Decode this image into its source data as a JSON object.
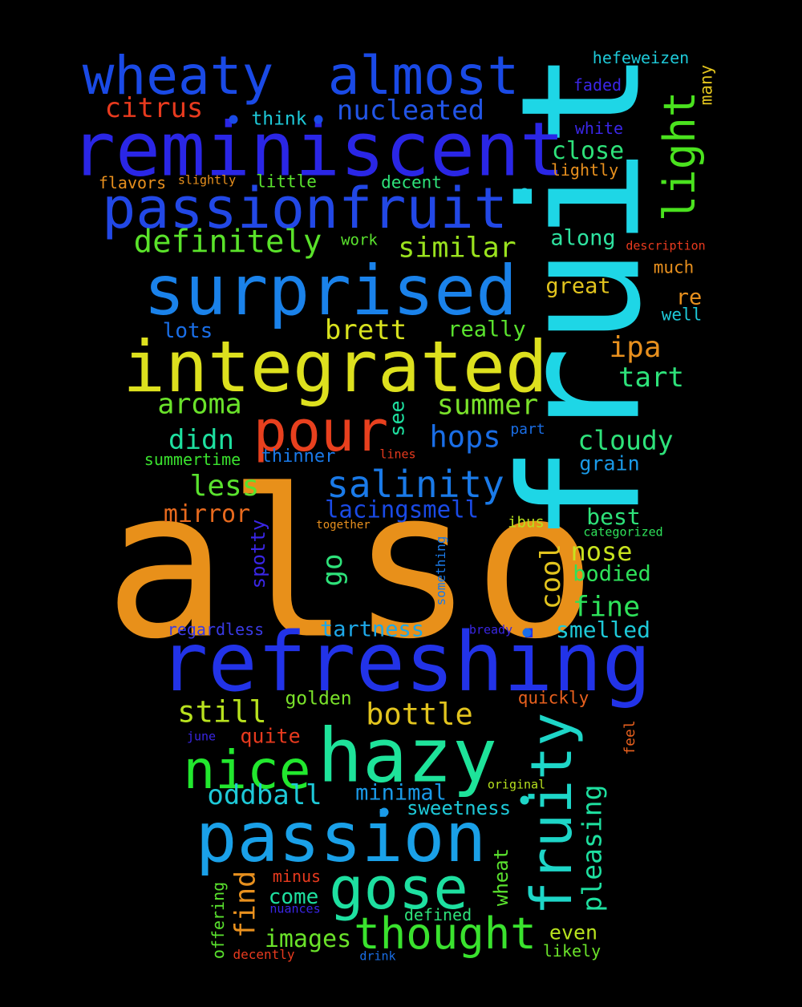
{
  "words": [
    {
      "text": "also",
      "color": "#e8901a"
    },
    {
      "text": "fruit",
      "color": "#1ed6e6"
    },
    {
      "text": "refreshing",
      "color": "#2233e8"
    },
    {
      "text": "reminiscent",
      "color": "#2a26e6"
    },
    {
      "text": "passion",
      "color": "#1aa0e8"
    },
    {
      "text": "integrated",
      "color": "#dde01e"
    },
    {
      "text": "surprised",
      "color": "#1a82ea"
    },
    {
      "text": "passionfruit",
      "color": "#2248e6"
    },
    {
      "text": "hazy",
      "color": "#1ee39a"
    },
    {
      "text": "wheaty",
      "color": "#1a4ae6"
    },
    {
      "text": "almost",
      "color": "#1a4ae6"
    },
    {
      "text": "fruity",
      "color": "#1ed6c8"
    },
    {
      "text": "pour",
      "color": "#e8401e"
    },
    {
      "text": "gose",
      "color": "#1ee0a0"
    },
    {
      "text": "nice",
      "color": "#22e82e"
    },
    {
      "text": "thought",
      "color": "#3ae22e"
    },
    {
      "text": "light",
      "color": "#4ae21e"
    },
    {
      "text": "salinity",
      "color": "#1a7ae8"
    },
    {
      "text": "definitely",
      "color": "#5ae22a"
    },
    {
      "text": "nucleated",
      "color": "#2255e6"
    },
    {
      "text": "oddball",
      "color": "#1ec9d8"
    },
    {
      "text": "citrus",
      "color": "#e83a1e"
    },
    {
      "text": "similar",
      "color": "#9ae21e"
    },
    {
      "text": "aroma",
      "color": "#6ae22a"
    },
    {
      "text": "summer",
      "color": "#7ae22a"
    },
    {
      "text": "bottle",
      "color": "#e2c41e"
    },
    {
      "text": "still",
      "color": "#b8e21e"
    },
    {
      "text": "hops",
      "color": "#1a6ee6"
    },
    {
      "text": "cloudy",
      "color": "#2ee27a"
    },
    {
      "text": "pleasing",
      "color": "#1ee0a0"
    },
    {
      "text": "brett",
      "color": "#d8e21e"
    },
    {
      "text": "less",
      "color": "#5ae22e"
    },
    {
      "text": "didn",
      "color": "#1ee0a0"
    },
    {
      "text": "ipa",
      "color": "#e8901e"
    },
    {
      "text": "tart",
      "color": "#2ee27a"
    },
    {
      "text": "fine",
      "color": "#2ee25a"
    },
    {
      "text": "go",
      "color": "#2ee27a"
    },
    {
      "text": "find",
      "color": "#e8901e"
    },
    {
      "text": "cool",
      "color": "#e2c41e"
    },
    {
      "text": "mirror",
      "color": "#e86a1e"
    },
    {
      "text": "nose",
      "color": "#c8e21e"
    },
    {
      "text": "images",
      "color": "#6ae22a"
    },
    {
      "text": "close",
      "color": "#2ee27a"
    },
    {
      "text": "lacingsmell",
      "color": "#1a4ae6"
    },
    {
      "text": "tartness",
      "color": "#1ea8e8"
    },
    {
      "text": "minimal",
      "color": "#1a9ae8"
    },
    {
      "text": "great",
      "color": "#e2c41e"
    },
    {
      "text": "best",
      "color": "#2ee27a"
    },
    {
      "text": "smelled",
      "color": "#1ec9d8"
    },
    {
      "text": "bodied",
      "color": "#2ee25a"
    },
    {
      "text": "grain",
      "color": "#1a9ae8"
    },
    {
      "text": "along",
      "color": "#2ee2a0"
    },
    {
      "text": "really",
      "color": "#5ae22e"
    },
    {
      "text": "lots",
      "color": "#1a6ee6"
    },
    {
      "text": "see",
      "color": "#1ee0a0"
    },
    {
      "text": "sweetness",
      "color": "#1ec9d8"
    },
    {
      "text": "come",
      "color": "#1ee0a0"
    },
    {
      "text": "even",
      "color": "#b8e21e"
    },
    {
      "text": "quite",
      "color": "#e83a1e"
    },
    {
      "text": "golden",
      "color": "#7ae22a"
    },
    {
      "text": "wheat",
      "color": "#5ae22e"
    },
    {
      "text": "spotty",
      "color": "#3a26e6"
    },
    {
      "text": "re",
      "color": "#e8901e"
    },
    {
      "text": "think",
      "color": "#1ec9d8"
    },
    {
      "text": "hefeweizen",
      "color": "#1ec9d8"
    },
    {
      "text": "faded",
      "color": "#3a26e6"
    },
    {
      "text": "white",
      "color": "#3a26e6"
    },
    {
      "text": "many",
      "color": "#e2c41e"
    },
    {
      "text": "little",
      "color": "#5ae22e"
    },
    {
      "text": "decent",
      "color": "#2ee27a"
    },
    {
      "text": "flavors",
      "color": "#e8901e"
    },
    {
      "text": "lightly",
      "color": "#e8901e"
    },
    {
      "text": "work",
      "color": "#5ae22e"
    },
    {
      "text": "much",
      "color": "#e8901e"
    },
    {
      "text": "defined",
      "color": "#2ee27a"
    },
    {
      "text": "thinner",
      "color": "#1a7ae8"
    },
    {
      "text": "summertime",
      "color": "#3ae22e"
    },
    {
      "text": "ibus",
      "color": "#b8e21e"
    },
    {
      "text": "regardless",
      "color": "#3a3ae6"
    },
    {
      "text": "quickly",
      "color": "#e8601e"
    },
    {
      "text": "minus",
      "color": "#e83a1e"
    },
    {
      "text": "offering",
      "color": "#5ae22e"
    },
    {
      "text": "likely",
      "color": "#6ae22a"
    },
    {
      "text": "well",
      "color": "#1ec9d8"
    },
    {
      "text": "something",
      "color": "#1a7ae8"
    },
    {
      "text": "part",
      "color": "#1a6ee6"
    },
    {
      "text": "feel",
      "color": "#e8601e"
    },
    {
      "text": "slightly",
      "color": "#e8901e"
    },
    {
      "text": "description",
      "color": "#e83a1e"
    },
    {
      "text": "lines",
      "color": "#e83a1e"
    },
    {
      "text": "together",
      "color": "#e8901e"
    },
    {
      "text": "categorized",
      "color": "#2ee25a"
    },
    {
      "text": "bready",
      "color": "#3a26e6"
    },
    {
      "text": "june",
      "color": "#3a26e6"
    },
    {
      "text": "original",
      "color": "#b8e21e"
    },
    {
      "text": "nuances",
      "color": "#3a26e6"
    },
    {
      "text": "decently",
      "color": "#e83a1e"
    },
    {
      "text": "drink",
      "color": "#1a6ee6"
    }
  ]
}
